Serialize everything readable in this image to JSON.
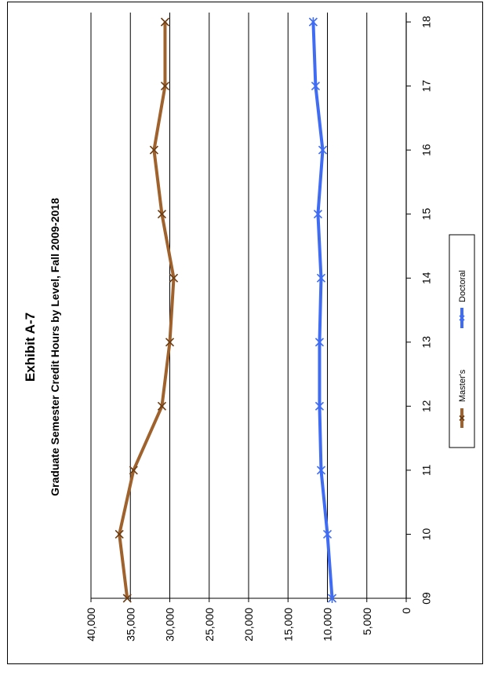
{
  "chart_data": {
    "type": "line",
    "exhibit_title": "Exhibit  A-7",
    "title": "Graduate Semester Credit Hours by Level, Fall 2009-2018",
    "categories": [
      "09",
      "10",
      "11",
      "12",
      "13",
      "14",
      "15",
      "16",
      "17",
      "18"
    ],
    "ylim": [
      0,
      40000
    ],
    "y_ticks": [
      0,
      5000,
      10000,
      15000,
      20000,
      25000,
      30000,
      35000,
      40000
    ],
    "y_tick_labels": [
      "0",
      "5,000",
      "10,000",
      "15,000",
      "20,000",
      "25,000",
      "30,000",
      "35,000",
      "40,000"
    ],
    "grid": true,
    "orientation": "rotated-90-ccw",
    "legend_position": "bottom",
    "series": [
      {
        "name": "Master's",
        "color": "#a0622d",
        "marker": "x",
        "values": [
          35400,
          36400,
          34600,
          31000,
          30000,
          29500,
          31000,
          32000,
          30600,
          30600
        ]
      },
      {
        "name": "Doctoral",
        "color": "#3f6cf2",
        "marker": "asterisk",
        "values": [
          9400,
          10000,
          10800,
          11000,
          11000,
          10800,
          11200,
          10600,
          11500,
          11800
        ]
      }
    ]
  }
}
